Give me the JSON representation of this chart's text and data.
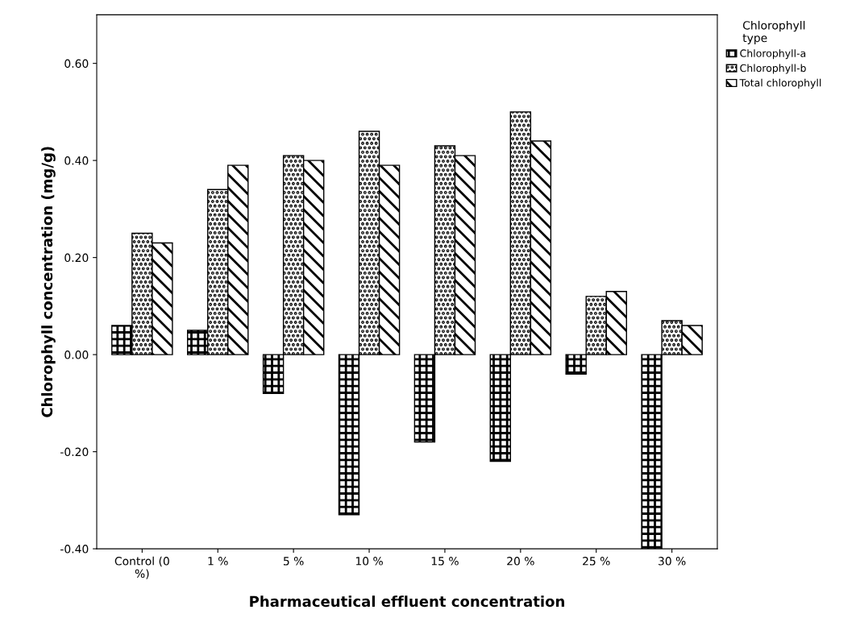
{
  "chart_data": {
    "type": "bar",
    "xlabel": "Pharmaceutical effluent concentration",
    "ylabel": "Chlorophyll concentration (mg/g)",
    "legend_title": "Chlorophyll\ntype",
    "legend": "top right",
    "grid": false,
    "categories": [
      "Control (0\n%)",
      "1 %",
      "5 %",
      "10 %",
      "15 %",
      "20 %",
      "25 %",
      "30 %"
    ],
    "series": [
      {
        "name": "Chlorophyll-a",
        "color": "#000000",
        "values": [
          0.06,
          0.05,
          -0.08,
          -0.33,
          -0.18,
          -0.22,
          -0.04,
          -0.4
        ]
      },
      {
        "name": "Chlorophyll-b",
        "color": "#000000",
        "values": [
          0.25,
          0.34,
          0.41,
          0.46,
          0.43,
          0.5,
          0.12,
          0.07
        ]
      },
      {
        "name": "Total chlorophyll",
        "color": "#000000",
        "values": [
          0.23,
          0.39,
          0.4,
          0.39,
          0.41,
          0.44,
          0.13,
          0.06
        ]
      }
    ],
    "ylim": [
      -0.4,
      0.7
    ],
    "yticks": [
      {
        "value": -0.4,
        "label": "-0.40"
      },
      {
        "value": -0.2,
        "label": "-0.20"
      },
      {
        "value": 0.0,
        "label": "0.00"
      },
      {
        "value": 0.2,
        "label": "0.20"
      },
      {
        "value": 0.4,
        "label": "0.40"
      },
      {
        "value": 0.6,
        "label": "0.60"
      }
    ]
  }
}
